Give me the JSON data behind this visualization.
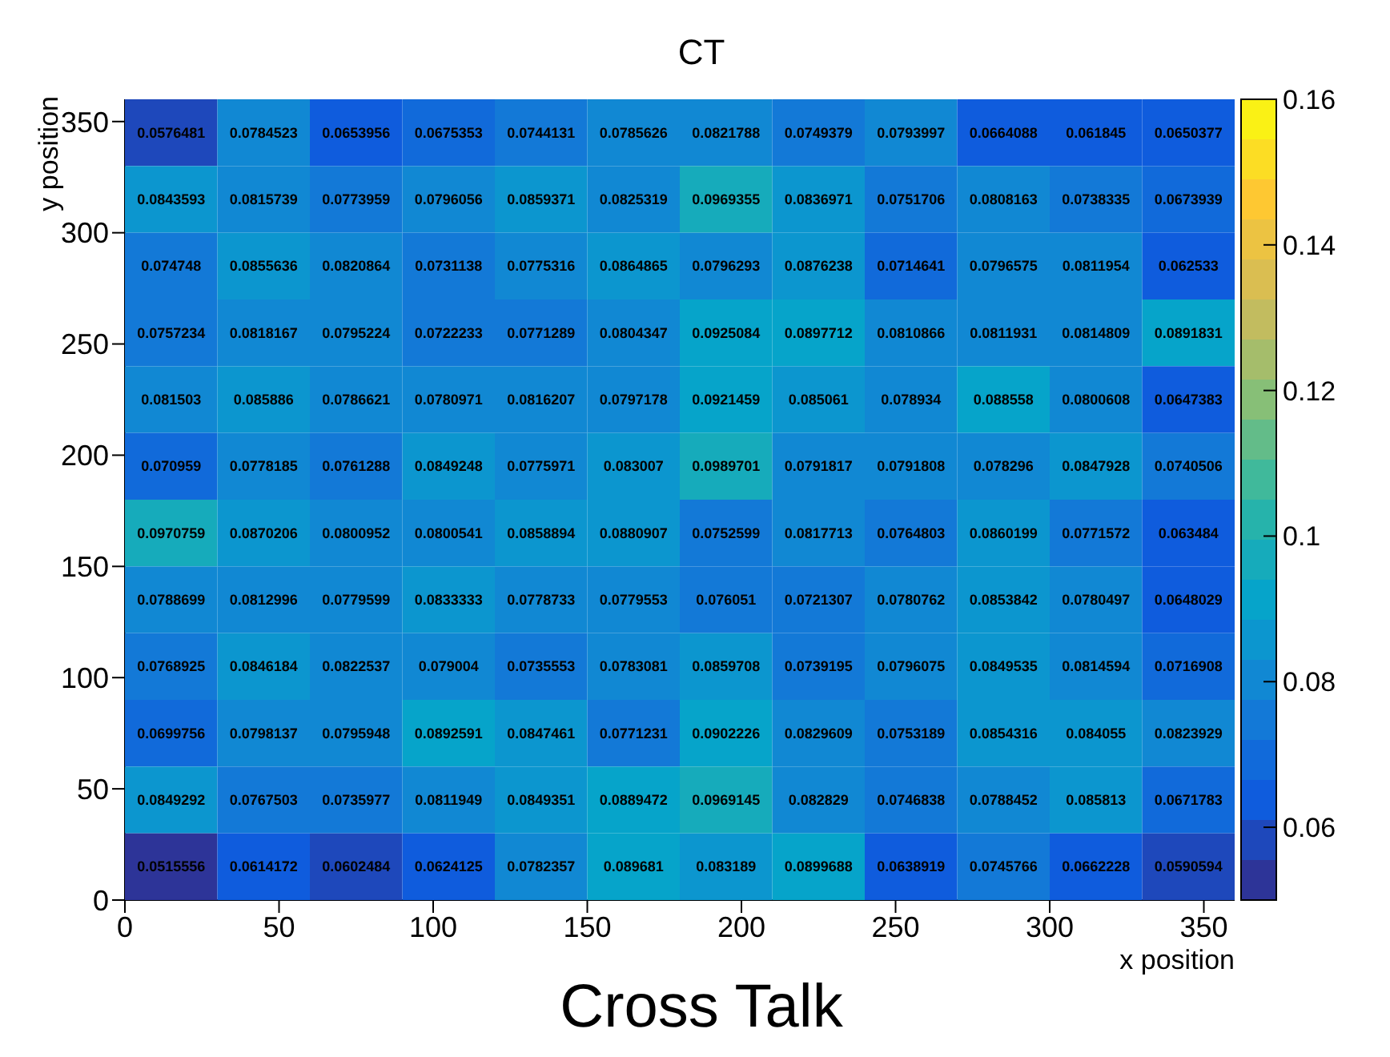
{
  "chart_data": {
    "type": "heatmap",
    "title": "CT",
    "xlabel": "x position",
    "ylabel": "y position",
    "annotations": [
      "Cross Talk"
    ],
    "xlim": [
      0,
      360
    ],
    "xticks": [
      0,
      50,
      100,
      150,
      200,
      250,
      300,
      350
    ],
    "ylim": [
      0,
      360
    ],
    "yticks": [
      0,
      50,
      100,
      150,
      200,
      250,
      300,
      350
    ],
    "clim": [
      0.05,
      0.16
    ],
    "cticks": [
      0.06,
      0.08,
      0.1,
      0.12,
      0.14,
      0.16
    ],
    "data_labels": true,
    "cells": [
      [
        0.0576481,
        0.0784523,
        0.0653956,
        0.0675353,
        0.0744131,
        0.0785626,
        0.0821788,
        0.0749379,
        0.0793997,
        0.0664088,
        0.061845,
        0.0650377
      ],
      [
        0.0843593,
        0.0815739,
        0.0773959,
        0.0796056,
        0.0859371,
        0.0825319,
        0.0969355,
        0.0836971,
        0.0751706,
        0.0808163,
        0.0738335,
        0.0673939
      ],
      [
        0.074748,
        0.0855636,
        0.0820864,
        0.0731138,
        0.0775316,
        0.0864865,
        0.0796293,
        0.0876238,
        0.0714641,
        0.0796575,
        0.0811954,
        0.062533
      ],
      [
        0.0757234,
        0.0818167,
        0.0795224,
        0.0722233,
        0.0771289,
        0.0804347,
        0.0925084,
        0.0897712,
        0.0810866,
        0.0811931,
        0.0814809,
        0.0891831
      ],
      [
        0.081503,
        0.085886,
        0.0786621,
        0.0780971,
        0.0816207,
        0.0797178,
        0.0921459,
        0.085061,
        0.078934,
        0.088558,
        0.0800608,
        0.0647383
      ],
      [
        0.070959,
        0.0778185,
        0.0761288,
        0.0849248,
        0.0775971,
        0.083007,
        0.0989701,
        0.0791817,
        0.0791808,
        0.078296,
        0.0847928,
        0.0740506
      ],
      [
        0.0970759,
        0.0870206,
        0.0800952,
        0.0800541,
        0.0858894,
        0.0880907,
        0.0752599,
        0.0817713,
        0.0764803,
        0.0860199,
        0.0771572,
        0.063484
      ],
      [
        0.0788699,
        0.0812996,
        0.0779599,
        0.0833333,
        0.0778733,
        0.0779553,
        0.076051,
        0.0721307,
        0.0780762,
        0.0853842,
        0.0780497,
        0.0648029
      ],
      [
        0.0768925,
        0.0846184,
        0.0822537,
        0.079004,
        0.0735553,
        0.0783081,
        0.0859708,
        0.0739195,
        0.0796075,
        0.0849535,
        0.0814594,
        0.0716908
      ],
      [
        0.0699756,
        0.0798137,
        0.0795948,
        0.0892591,
        0.0847461,
        0.0771231,
        0.0902226,
        0.0829609,
        0.0753189,
        0.0854316,
        0.084055,
        0.0823929
      ],
      [
        0.0849292,
        0.0767503,
        0.0735977,
        0.0811949,
        0.0849351,
        0.0889472,
        0.0969145,
        0.082829,
        0.0746838,
        0.0788452,
        0.085813,
        0.0671783
      ],
      [
        0.0515556,
        0.0614172,
        0.0602484,
        0.0624125,
        0.0782357,
        0.089681,
        0.083189,
        0.0899688,
        0.0638919,
        0.0745766,
        0.0662228,
        0.0590594
      ]
    ]
  }
}
